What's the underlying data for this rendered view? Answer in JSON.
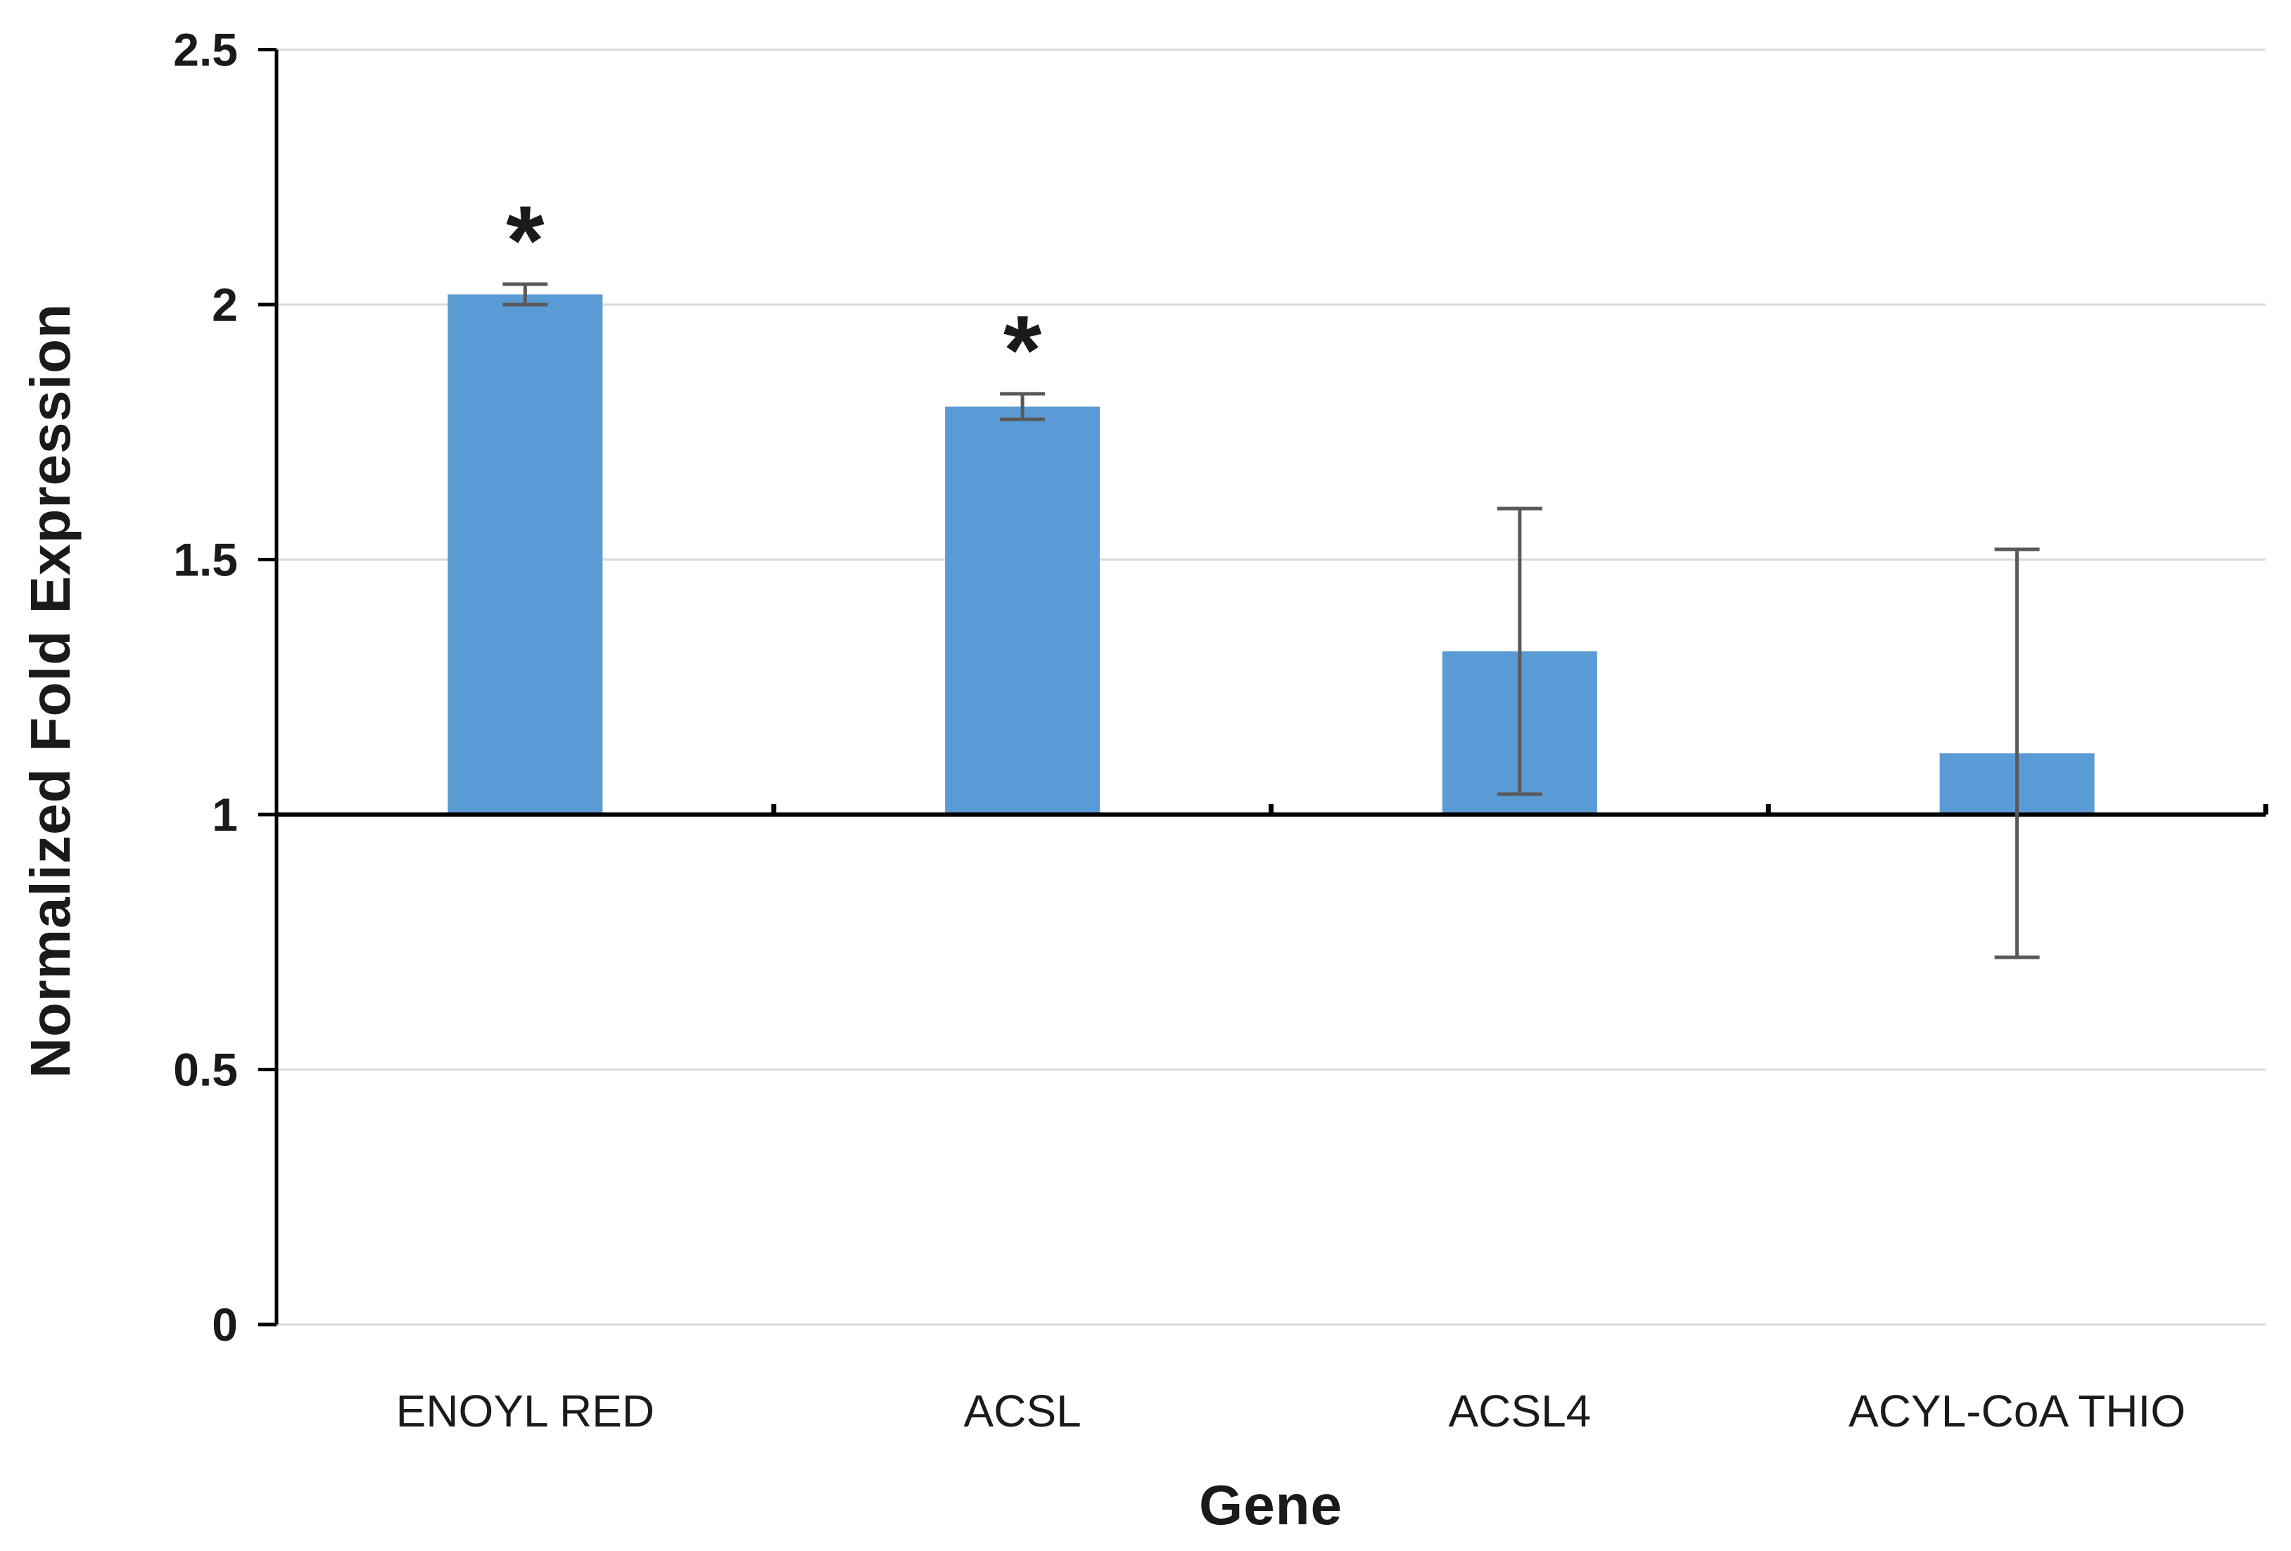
{
  "chart_data": {
    "type": "bar",
    "title": "",
    "xlabel": "Gene",
    "ylabel": "Normalized Fold Expression",
    "categories": [
      "ENOYL RED",
      "ACSL",
      "ACSL4",
      "ACYL-CoA THIO"
    ],
    "values": [
      2.02,
      1.8,
      1.32,
      1.12
    ],
    "error_bars": [
      0.02,
      0.025,
      0.28,
      0.4
    ],
    "significance": [
      "*",
      "*",
      "",
      ""
    ],
    "baseline": 1,
    "ylim": [
      0,
      2.5
    ],
    "yticks": [
      0,
      0.5,
      1,
      1.5,
      2,
      2.5
    ],
    "ytick_labels": [
      "0",
      "0.5",
      "1",
      "1.5",
      "2",
      "2.5"
    ],
    "grid": true,
    "legend": "none",
    "colors": {
      "bar": "#5B9BD5",
      "error_bar": "#595959",
      "gridline": "#D9D9D9",
      "axis": "#000000",
      "text": "#1A1A1A",
      "background": "#FFFFFF"
    }
  }
}
